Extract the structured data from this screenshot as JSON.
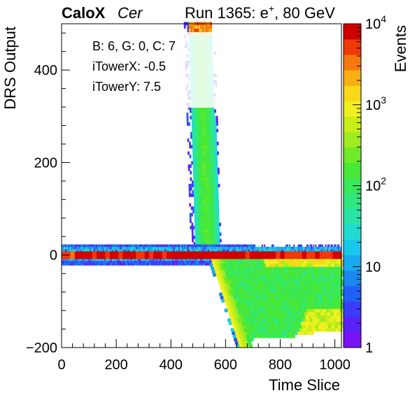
{
  "header": {
    "experiment": "CaloX",
    "channel": "Cer",
    "run_prefix": "Run 1365: e",
    "run_sup": "+",
    "run_suffix": ", 80 GeV"
  },
  "info_box": {
    "line1": "B: 6, G: 0, C: 7",
    "line2": "iTowerX: -0.5",
    "line3": "iTowerY: 7.5"
  },
  "chart_data": {
    "type": "heatmap",
    "title": "",
    "xlabel": "Time Slice",
    "ylabel": "DRS Output",
    "zlabel": "Events",
    "xlim": [
      0,
      1024
    ],
    "ylim": [
      -200,
      500
    ],
    "zlim": [
      1,
      10000
    ],
    "z_scale": "log",
    "x_ticks": [
      "0",
      "200",
      "400",
      "600",
      "800",
      "1000"
    ],
    "y_ticks": [
      "−200",
      "0",
      "200",
      "400"
    ],
    "z_ticks": [
      {
        "base": "1",
        "exp": ""
      },
      {
        "base": "10",
        "exp": ""
      },
      {
        "base": "10",
        "exp": "2"
      },
      {
        "base": "10",
        "exp": "3"
      },
      {
        "base": "10",
        "exp": "4"
      }
    ],
    "palette": [
      "#7a12f5",
      "#5a22f8",
      "#3b3cfa",
      "#2060f8",
      "#1a88f0",
      "#18aaee",
      "#18c8ea",
      "#20dcd0",
      "#28e4a8",
      "#30e880",
      "#38e85a",
      "#48e838",
      "#70ea28",
      "#a0ec20",
      "#c8ee18",
      "#f0f020",
      "#f8d818",
      "#f8b010",
      "#f87810",
      "#f03808",
      "#d00000"
    ],
    "features": [
      {
        "name": "baseline",
        "x": [
          0,
          1024
        ],
        "y": [
          -8,
          8
        ],
        "z": 10000
      },
      {
        "name": "baseline-noise",
        "x": [
          0,
          1024
        ],
        "y": [
          -20,
          20
        ],
        "z": 5
      },
      {
        "name": "upper-saturation-stripe",
        "x": [
          460,
          590
        ],
        "y": [
          0,
          500
        ],
        "z": 100
      },
      {
        "name": "signal-pulse",
        "x": [
          540,
          1024
        ],
        "y": [
          -200,
          0
        ],
        "z": 150
      }
    ]
  }
}
